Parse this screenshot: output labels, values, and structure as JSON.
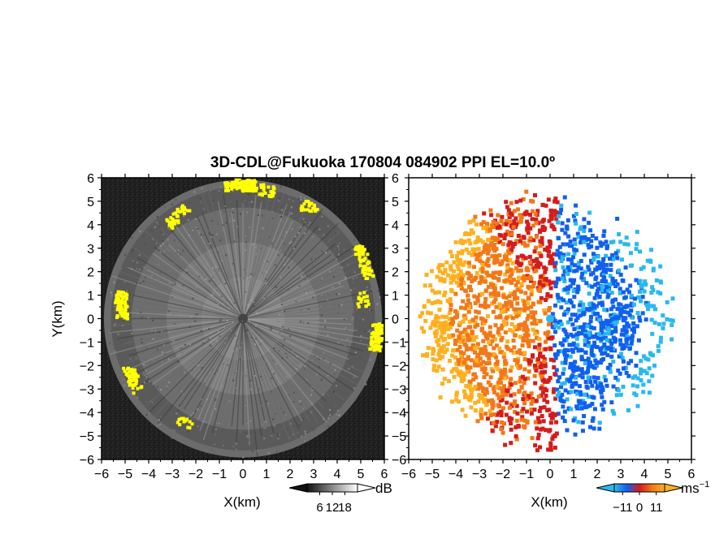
{
  "title": "3D-CDL@Fukuoka 170804 084902 PPI EL=10.0º",
  "chart_data": [
    {
      "type": "heatmap",
      "panel": "left",
      "quantity": "reflectivity (SNR)",
      "xlabel": "X(km)",
      "ylabel": "Y(km)",
      "xlim": [
        -6,
        6
      ],
      "ylim": [
        -6,
        6
      ],
      "x_ticks": [
        "−6",
        "−5",
        "−4",
        "−3",
        "−2",
        "−1",
        "0",
        "1",
        "2",
        "3",
        "4",
        "5",
        "6"
      ],
      "y_ticks": [
        "6",
        "5",
        "4",
        "3",
        "2",
        "1",
        "0",
        "−1",
        "−2",
        "−3",
        "−4",
        "−5",
        "−6"
      ],
      "colorbar": {
        "unit": "dB",
        "ticks": [
          "6",
          "12",
          "18"
        ],
        "tick_values": [
          6,
          12,
          18
        ],
        "range": [
          0,
          24
        ],
        "colors": [
          "#111111",
          "#ffffff"
        ]
      },
      "highlight_color": "#ffff00",
      "background_color": "#1a1a1a",
      "radar_range_km": 5.9
    },
    {
      "type": "heatmap",
      "panel": "right",
      "quantity": "Doppler velocity",
      "xlabel": "X(km)",
      "ylabel": "",
      "xlim": [
        -6,
        6
      ],
      "ylim": [
        -6,
        6
      ],
      "x_ticks": [
        "−6",
        "−5",
        "−4",
        "−3",
        "−2",
        "−1",
        "0",
        "1",
        "2",
        "3",
        "4",
        "5",
        "6"
      ],
      "y_ticks": [
        "6",
        "5",
        "4",
        "3",
        "2",
        "1",
        "0",
        "−1",
        "−2",
        "−3",
        "−4",
        "−5",
        "−6"
      ],
      "colorbar": {
        "unit": "ms",
        "unit_exp": "−1",
        "ticks": [
          "−11",
          "0",
          "11"
        ],
        "tick_values": [
          -11,
          0,
          11
        ],
        "range": [
          -16.5,
          16.5
        ],
        "colors": [
          "#2ab8ee",
          "#1060ee",
          "#d41c1c",
          "#f27818",
          "#ffb020"
        ]
      },
      "velocity_west_ms": 12,
      "velocity_east_ms": -10,
      "radar_range_km": 5.8
    }
  ]
}
